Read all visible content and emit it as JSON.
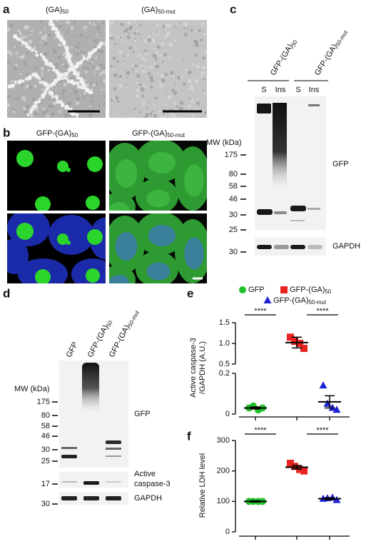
{
  "panels": {
    "a": {
      "label": "a",
      "titles": [
        "(GA)50",
        "(GA)50-mut"
      ]
    },
    "b": {
      "label": "b",
      "titles": [
        "GFP-(GA)50",
        "GFP-(GA)50-mut"
      ]
    },
    "c": {
      "label": "c",
      "groups": [
        "GFP-(GA)50",
        "GFP-(GA)50-mut"
      ],
      "lanes": [
        "S",
        "Ins",
        "S",
        "Ins"
      ],
      "mw_title": "MW (kDa)",
      "markers": [
        175,
        80,
        58,
        46,
        30,
        25
      ],
      "gapdh_markers": [
        30
      ],
      "blot_labels": [
        "GFP",
        "GAPDH"
      ]
    },
    "d": {
      "label": "d",
      "lanes": [
        "GFP",
        "GFP-(GA)50",
        "GFP-(GA)50-mut"
      ],
      "mw_title": "MW (kDa)",
      "markers": [
        175,
        80,
        58,
        46,
        30,
        25
      ],
      "caspase_markers": [
        17
      ],
      "gapdh_markers": [
        30
      ],
      "gfp_label": "GFP",
      "caspase_label": [
        "Active",
        "caspase-3"
      ],
      "gapdh_label": "GAPDH"
    }
  },
  "chart_data": [
    {
      "type": "scatter",
      "panel": "e",
      "ylabel": [
        "Active caspase-3",
        "/GAPDH (A.U.)"
      ],
      "segments": [
        {
          "ylim": [
            0,
            0.2
          ],
          "yticks": [
            0,
            0.2
          ]
        },
        {
          "ylim": [
            0.5,
            1.5
          ],
          "yticks": [
            0.5,
            {
              "value": 1,
              "label": "1.0"
            },
            1.5
          ]
        }
      ],
      "annotations": [
        "****",
        "****"
      ],
      "series": [
        {
          "name": "GFP",
          "color": "#22c02a",
          "marker": "circle",
          "values": [
            0.03,
            0.04,
            0.02,
            0.03
          ],
          "mean": 0.03,
          "sem": 0.005
        },
        {
          "name": "GFP-(GA)50",
          "color": "#e8231f",
          "marker": "square",
          "values": [
            1.15,
            1.05,
            1.0,
            0.88
          ],
          "mean": 1.02,
          "sem": 0.13
        },
        {
          "name": "GFP-(GA)50-mut",
          "color": "#1f22d4",
          "marker": "triangle",
          "values": [
            0.14,
            0.05,
            0.03,
            0.02
          ],
          "mean": 0.06,
          "sem": 0.03
        }
      ]
    },
    {
      "type": "scatter",
      "panel": "f",
      "ylabel": "Relative LDH level",
      "ylim": [
        0,
        300
      ],
      "yticks": [
        0,
        100,
        200,
        300
      ],
      "annotations": [
        "****",
        "****"
      ],
      "series": [
        {
          "color": "#22c02a",
          "marker": "circle",
          "values": [
            100,
            100,
            100,
            100
          ],
          "mean": 100,
          "sem": 2
        },
        {
          "color": "#e8231f",
          "marker": "square",
          "values": [
            225,
            215,
            205,
            200
          ],
          "mean": 212,
          "sem": 6
        },
        {
          "color": "#1f22d4",
          "marker": "triangle",
          "values": [
            108,
            110,
            112,
            104
          ],
          "mean": 109,
          "sem": 3
        }
      ]
    }
  ]
}
